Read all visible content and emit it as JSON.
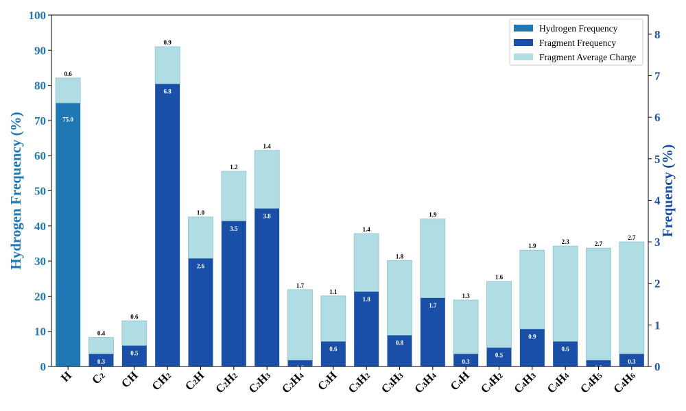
{
  "colors": {
    "hydrogen": "#1f77b4",
    "fragment": "#1a4fa8",
    "charge": "#b0dde3",
    "charge_edge": "#8fc3cc",
    "left_axis": "#1f77b4",
    "right_axis": "#1a4fa8"
  },
  "chart_data": {
    "type": "bar",
    "categories": [
      {
        "base": "H",
        "subs": []
      },
      {
        "base": "C",
        "subs": [
          "2"
        ]
      },
      {
        "base": "CH",
        "subs": []
      },
      {
        "base": "CH",
        "subs": [
          "2"
        ]
      },
      {
        "base": "C",
        "subs": [
          "2",
          "",
          "H"
        ]
      },
      {
        "base": "C",
        "subs": [
          "2",
          "H",
          "2"
        ]
      },
      {
        "base": "C",
        "subs": [
          "2",
          "H",
          "3"
        ]
      },
      {
        "base": "C",
        "subs": [
          "2",
          "H",
          "4"
        ]
      },
      {
        "base": "C",
        "subs": [
          "3",
          "H",
          ""
        ]
      },
      {
        "base": "C",
        "subs": [
          "3",
          "H",
          "2"
        ]
      },
      {
        "base": "C",
        "subs": [
          "3",
          "H",
          "3"
        ]
      },
      {
        "base": "C",
        "subs": [
          "3",
          "H",
          "4"
        ]
      },
      {
        "base": "C",
        "subs": [
          "4",
          "H",
          ""
        ]
      },
      {
        "base": "C",
        "subs": [
          "4",
          "H",
          "2"
        ]
      },
      {
        "base": "C",
        "subs": [
          "4",
          "H",
          "3"
        ]
      },
      {
        "base": "C",
        "subs": [
          "4",
          "H",
          "4"
        ]
      },
      {
        "base": "C",
        "subs": [
          "4",
          "H",
          "5"
        ]
      },
      {
        "base": "C",
        "subs": [
          "4",
          "H",
          "6"
        ]
      }
    ],
    "category_labels": [
      "H",
      "C2",
      "CH",
      "CH2",
      "C2H",
      "C2H2",
      "C2H3",
      "C2H4",
      "C3H",
      "C3H2",
      "C3H3",
      "C3H4",
      "C4H",
      "C4H2",
      "C4H3",
      "C4H4",
      "C4H5",
      "C4H6"
    ],
    "series": [
      {
        "name": "Hydrogen Frequency",
        "axis": "left",
        "values": [
          75.0,
          null,
          null,
          null,
          null,
          null,
          null,
          null,
          null,
          null,
          null,
          null,
          null,
          null,
          null,
          null,
          null,
          null
        ],
        "labels": [
          "75.0"
        ]
      },
      {
        "name": "Fragment Frequency",
        "axis": "right",
        "values": [
          null,
          0.3,
          0.5,
          6.8,
          2.6,
          3.5,
          3.8,
          0.15,
          0.6,
          1.8,
          0.75,
          1.65,
          0.3,
          0.45,
          0.9,
          0.6,
          0.15,
          0.3
        ],
        "labels": [
          "",
          "0.3",
          "0.5",
          "6.8",
          "2.6",
          "3.5",
          "3.8",
          "0.2",
          "0.6",
          "1.8",
          "0.8",
          "1.7",
          "0.3",
          "0.5",
          "0.9",
          "0.6",
          "0.2",
          "0.3"
        ]
      },
      {
        "name": "Fragment Average Charge",
        "axis": "right",
        "values": [
          0.6,
          0.4,
          0.6,
          0.9,
          1.0,
          1.2,
          1.4,
          1.7,
          1.1,
          1.4,
          1.8,
          1.9,
          1.3,
          1.6,
          1.9,
          2.3,
          2.7,
          2.7
        ],
        "labels": [
          "0.6",
          "0.4",
          "0.6",
          "0.9",
          "1.0",
          "1.2",
          "1.4",
          "1.7",
          "1.1",
          "1.4",
          "1.8",
          "1.9",
          "1.3",
          "1.6",
          "1.9",
          "2.3",
          "2.7",
          "2.7"
        ]
      }
    ],
    "ylabel_left": "Hydrogen Frequency (%)",
    "ylabel_right": "Frequency (%)",
    "ylim_left": [
      0,
      100
    ],
    "ylim_right": [
      0,
      8.46
    ],
    "yticks_left": [
      0,
      10,
      20,
      30,
      40,
      50,
      60,
      70,
      80,
      90,
      100
    ],
    "yticks_right": [
      0,
      1,
      2,
      3,
      4,
      5,
      6,
      7,
      8
    ],
    "stacked": true,
    "grid": false,
    "legend_position": "top-right"
  }
}
